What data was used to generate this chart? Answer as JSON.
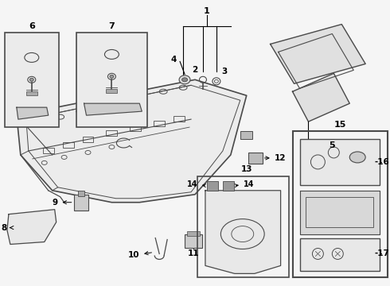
{
  "bg_color": "#f5f5f5",
  "line_color": "#4a4a4a",
  "text_color": "#000000",
  "fig_width": 4.9,
  "fig_height": 3.6,
  "dpi": 100
}
